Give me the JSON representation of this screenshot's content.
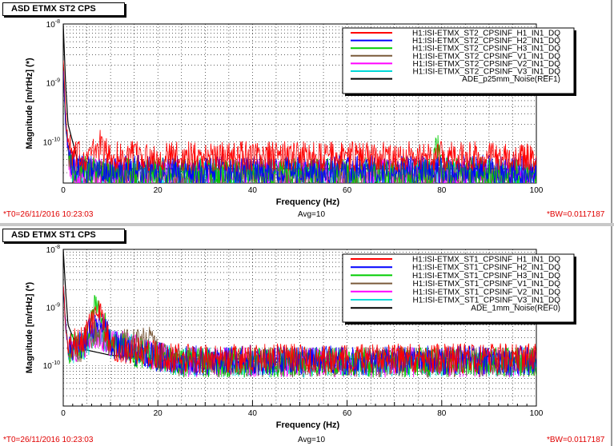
{
  "colors": {
    "H1": "#ff0000",
    "H2": "#0000ff",
    "H3": "#00cc00",
    "V1": "#7a5a3a",
    "V2": "#ff00ff",
    "V3": "#00d8d8",
    "REF": "#000000"
  },
  "panels": [
    {
      "title": "ASD ETMX ST2 CPS",
      "footer": {
        "t0": "*T0=26/11/2016 10:23:03",
        "avg": "Avg=10",
        "bw": "*BW=0.0117187"
      }
    },
    {
      "title": "ASD ETMX ST1 CPS",
      "footer": {
        "t0": "*T0=26/11/2016 10:23:03",
        "avg": "Avg=10",
        "bw": "*BW=0.0117187"
      }
    }
  ],
  "chart_data": [
    {
      "type": "line",
      "xlabel": "Frequency (Hz)",
      "ylabel": "Magnitude [m/rtHz] (*)",
      "xlim": [
        0,
        100
      ],
      "ylog": true,
      "ylim": [
        2e-11,
        1e-08
      ],
      "xticks": [
        "0",
        "20",
        "40",
        "60",
        "80",
        "100"
      ],
      "yticks": [
        {
          "base": "10",
          "exp": "-8"
        },
        {
          "base": "10",
          "exp": "-9"
        },
        {
          "base": "10",
          "exp": "-10"
        }
      ],
      "grid": true,
      "legend_position": "top-right",
      "series": [
        {
          "name": "H1:ISI-ETMX_ST2_CPSINF_H1_IN1_DQ",
          "color_key": "H1",
          "x": [
            0,
            0.5,
            1,
            2,
            5,
            7,
            8,
            9,
            10,
            15,
            20,
            40,
            60,
            80,
            100
          ],
          "y": [
            3e-09,
            3e-10,
            1e-10,
            6e-11,
            6e-11,
            8e-11,
            1e-10,
            7e-11,
            6e-11,
            6e-11,
            6e-11,
            6e-11,
            6e-11,
            6e-11,
            6e-11
          ]
        },
        {
          "name": "H1:ISI-ETMX_ST2_CPSINF_H2_IN1_DQ",
          "color_key": "H2",
          "x": [
            0,
            0.5,
            1,
            2,
            5,
            8,
            10,
            20,
            40,
            60,
            80,
            100
          ],
          "y": [
            2e-09,
            2e-10,
            8e-11,
            4e-11,
            3.5e-11,
            4e-11,
            3.5e-11,
            3.5e-11,
            3.5e-11,
            3.5e-11,
            3.5e-11,
            3.5e-11
          ]
        },
        {
          "name": "H1:ISI-ETMX_ST2_CPSINF_H3_IN1_DQ",
          "color_key": "H3",
          "x": [
            0,
            0.5,
            1,
            2,
            10,
            20,
            40,
            60,
            78,
            79,
            80,
            100
          ],
          "y": [
            2e-09,
            2e-10,
            8e-11,
            3.5e-11,
            3.2e-11,
            3.2e-11,
            3.2e-11,
            3.2e-11,
            3.2e-11,
            1e-10,
            3.2e-11,
            3.2e-11
          ]
        },
        {
          "name": "H1:ISI-ETMX_ST2_CPSINF_V1_IN1_DQ",
          "color_key": "V1",
          "x": [
            0,
            0.5,
            1,
            2,
            10,
            17,
            20,
            40,
            60,
            80,
            100
          ],
          "y": [
            2e-09,
            2e-10,
            7e-11,
            3.2e-11,
            3e-11,
            3e-11,
            3e-11,
            3e-11,
            3e-11,
            3e-11,
            3e-11
          ]
        },
        {
          "name": "H1:ISI-ETMX_ST2_CPSINF_V2_IN1_DQ",
          "color_key": "V2",
          "x": [
            0,
            0.5,
            1,
            2,
            10,
            20,
            40,
            60,
            80,
            100
          ],
          "y": [
            2e-09,
            2e-10,
            7e-11,
            3.2e-11,
            3e-11,
            3e-11,
            3e-11,
            3e-11,
            3e-11,
            3e-11
          ]
        },
        {
          "name": "H1:ISI-ETMX_ST2_CPSINF_V3_IN1_DQ",
          "color_key": "V3",
          "x": [
            0,
            0.5,
            1,
            2,
            10,
            20,
            40,
            60,
            80,
            100
          ],
          "y": [
            2e-09,
            2e-10,
            7e-11,
            3e-11,
            3e-11,
            3e-11,
            3e-11,
            3e-11,
            3e-11,
            3e-11
          ]
        },
        {
          "name": "ADE_p25mm_Noise(REF1)",
          "color_key": "REF",
          "x": [
            0,
            0.5,
            1,
            3,
            10,
            20,
            40,
            60,
            80,
            100
          ],
          "y": [
            1e-08,
            1e-09,
            2e-10,
            5e-11,
            3.5e-11,
            3.5e-11,
            3.5e-11,
            3.5e-11,
            3.5e-11,
            3.5e-11
          ]
        }
      ]
    },
    {
      "type": "line",
      "xlabel": "Frequency (Hz)",
      "ylabel": "Magnitude [m/rtHz] (*)",
      "xlim": [
        0,
        100
      ],
      "ylog": true,
      "ylim": [
        2e-11,
        1e-08
      ],
      "xticks": [
        "0",
        "20",
        "40",
        "60",
        "80",
        "100"
      ],
      "yticks": [
        {
          "base": "10",
          "exp": "-8"
        },
        {
          "base": "10",
          "exp": "-9"
        },
        {
          "base": "10",
          "exp": "-10"
        }
      ],
      "grid": true,
      "legend_position": "top-right",
      "series": [
        {
          "name": "H1:ISI-ETMX_ST1_CPSINF_H1_IN1_DQ",
          "color_key": "H1",
          "x": [
            0,
            0.5,
            1,
            2,
            4,
            6,
            7,
            8,
            9,
            10,
            12,
            15,
            18,
            20,
            25,
            40,
            60,
            80,
            100
          ],
          "y": [
            3e-09,
            5e-10,
            2e-10,
            2.5e-10,
            3e-10,
            6e-10,
            9e-10,
            7e-10,
            4e-10,
            2.5e-10,
            2e-10,
            2e-10,
            1.8e-10,
            1.5e-10,
            1.4e-10,
            1.4e-10,
            1.4e-10,
            1.4e-10,
            1.4e-10
          ]
        },
        {
          "name": "H1:ISI-ETMX_ST1_CPSINF_H2_IN1_DQ",
          "color_key": "H2",
          "x": [
            0,
            0.5,
            1,
            2,
            4,
            7,
            8,
            10,
            15,
            20,
            25,
            40,
            60,
            80,
            100
          ],
          "y": [
            3e-09,
            5e-10,
            2e-10,
            2.2e-10,
            2.5e-10,
            6e-10,
            7e-10,
            2.5e-10,
            1.8e-10,
            1.5e-10,
            1.3e-10,
            1.3e-10,
            1.3e-10,
            1.3e-10,
            1.3e-10
          ]
        },
        {
          "name": "H1:ISI-ETMX_ST1_CPSINF_H3_IN1_DQ",
          "color_key": "H3",
          "x": [
            0,
            0.5,
            1,
            2,
            4,
            7,
            8,
            10,
            15,
            20,
            25,
            40,
            60,
            80,
            100
          ],
          "y": [
            3e-09,
            5e-10,
            2e-10,
            2.2e-10,
            2.5e-10,
            1.2e-09,
            8e-10,
            2.5e-10,
            1.8e-10,
            1.5e-10,
            1.2e-10,
            1.2e-10,
            1.2e-10,
            1.2e-10,
            1.2e-10
          ]
        },
        {
          "name": "H1:ISI-ETMX_ST1_CPSINF_V1_IN1_DQ",
          "color_key": "V1",
          "x": [
            0,
            0.5,
            1,
            2,
            4,
            7,
            10,
            15,
            18,
            20,
            25,
            40,
            60,
            80,
            100
          ],
          "y": [
            3e-09,
            5e-10,
            2e-10,
            2e-10,
            2.2e-10,
            4e-10,
            2.5e-10,
            2.5e-10,
            3e-10,
            1.6e-10,
            1.2e-10,
            1.2e-10,
            1.2e-10,
            1.2e-10,
            1.2e-10
          ]
        },
        {
          "name": "H1:ISI-ETMX_ST1_CPSINF_V2_IN1_DQ",
          "color_key": "V2",
          "x": [
            0,
            0.5,
            1,
            2,
            4,
            7,
            10,
            15,
            20,
            25,
            40,
            60,
            80,
            100
          ],
          "y": [
            3e-09,
            5e-10,
            2e-10,
            2e-10,
            2.2e-10,
            4e-10,
            2.5e-10,
            2.2e-10,
            1.5e-10,
            1.2e-10,
            1.2e-10,
            1.2e-10,
            1.2e-10,
            1.2e-10
          ]
        },
        {
          "name": "H1:ISI-ETMX_ST1_CPSINF_V3_IN1_DQ",
          "color_key": "V3",
          "x": [
            0,
            0.5,
            1,
            2,
            4,
            7,
            10,
            15,
            20,
            25,
            40,
            60,
            80,
            100
          ],
          "y": [
            3e-09,
            5e-10,
            2e-10,
            2e-10,
            2.2e-10,
            4e-10,
            2.5e-10,
            2.2e-10,
            1.5e-10,
            1.2e-10,
            1.2e-10,
            1.2e-10,
            1.2e-10,
            1.2e-10
          ]
        },
        {
          "name": "ADE_1mm_Noise(REF0)",
          "color_key": "REF",
          "x": [
            0,
            0.5,
            1,
            3,
            10,
            20,
            40,
            60,
            80,
            100
          ],
          "y": [
            1e-08,
            2e-09,
            5e-10,
            2e-10,
            1.5e-10,
            1.3e-10,
            1.3e-10,
            1.3e-10,
            1.3e-10,
            1.3e-10
          ]
        }
      ]
    }
  ]
}
